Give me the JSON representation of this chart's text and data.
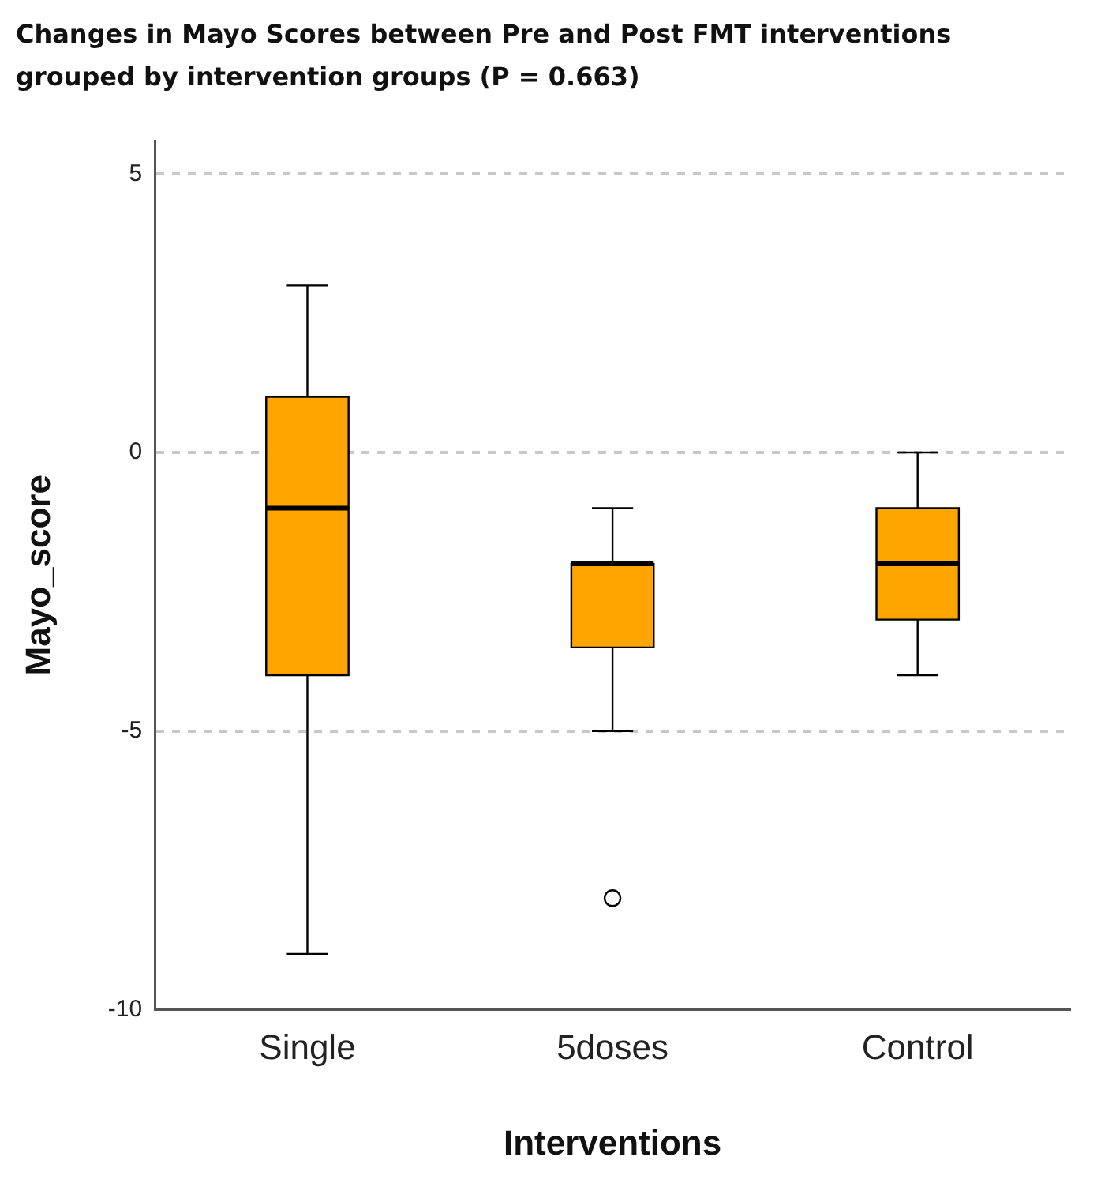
{
  "chart_data": {
    "type": "box",
    "title": "Changes in Mayo Scores between Pre and Post FMT interventions grouped by intervention groups (P = 0.663)",
    "xlabel": "Interventions",
    "ylabel": "Mayo_score",
    "categories": [
      "Single",
      "5doses",
      "Control"
    ],
    "color": "#ffa500",
    "boxes": [
      {
        "low": -9,
        "q1": -4,
        "median": -1,
        "q3": 1,
        "high": 3
      },
      {
        "low": -5,
        "q1": -3.5,
        "median": -2,
        "q3": -2,
        "high": -1,
        "outliers": [
          -8
        ]
      },
      {
        "low": -4,
        "q1": -3,
        "median": -2,
        "q3": -1,
        "high": 0
      }
    ],
    "ylim": [
      -10,
      5.6
    ],
    "yticks": [
      -10,
      -5,
      0,
      5
    ],
    "grid": "y",
    "legend": false
  }
}
